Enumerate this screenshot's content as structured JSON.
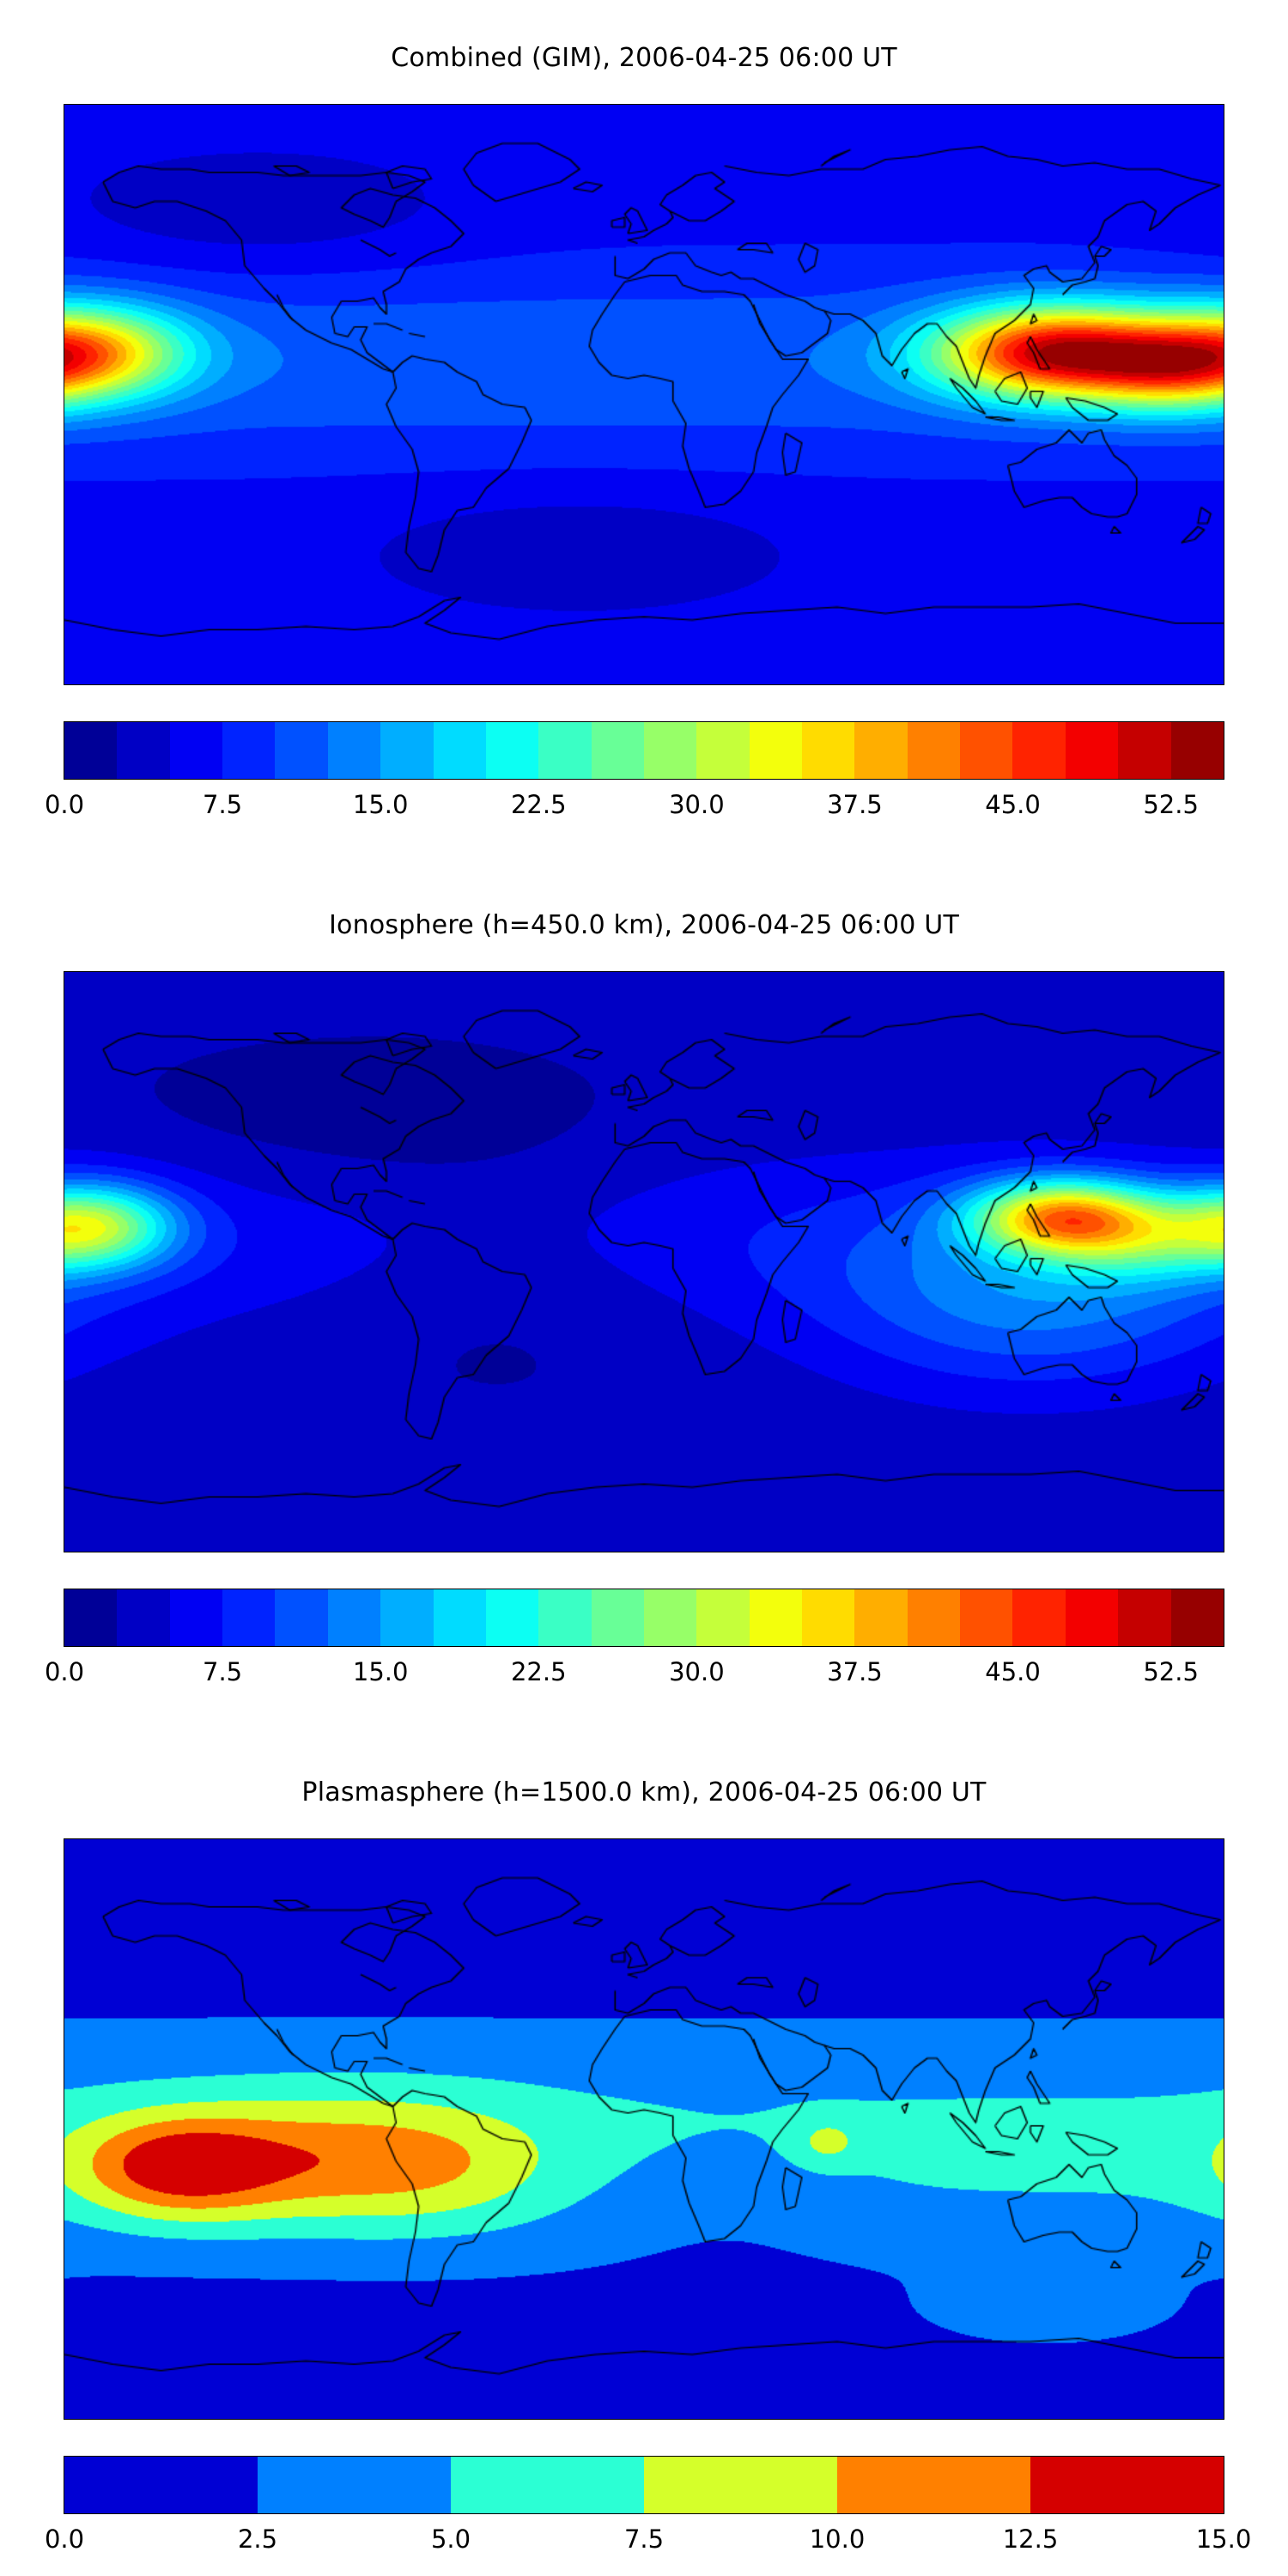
{
  "chart_data": [
    {
      "type": "heatmap",
      "subtype": "filled-contour-world-map",
      "title": "Combined (GIM), 2006-04-25 06:00 UT",
      "extent": {
        "lon_min": -180,
        "lon_max": 180,
        "lat_min": -90,
        "lat_max": 90
      },
      "coastlines": true,
      "colorbar": {
        "colormap": "jet",
        "orientation": "horizontal",
        "vmin": 0,
        "vmax": 55,
        "n_levels": 22,
        "ticks": [
          {
            "label": "0.0",
            "value": 0
          },
          {
            "label": "7.5",
            "value": 7.5
          },
          {
            "label": "15.0",
            "value": 15
          },
          {
            "label": "22.5",
            "value": 22.5
          },
          {
            "label": "30.0",
            "value": 30
          },
          {
            "label": "37.5",
            "value": 37.5
          },
          {
            "label": "45.0",
            "value": 45
          },
          {
            "label": "52.5",
            "value": 52.5
          }
        ]
      },
      "field": {
        "description": "Global TEC map: equatorial enhancement band with strong maximum (~50+) over Southeast Asia / western Pacific extending red-orange to the eastern map edge, secondary yellow-orange maximum (~40) at the western map edge near the date line, darker low-value patches over the northeast Pacific and south Atlantic",
        "base": 6,
        "band": {
          "lat0": 10,
          "sigma": 22,
          "amp": 6
        },
        "blobs": [
          {
            "lon": 128,
            "lat": 13,
            "amp": 40,
            "slon": 26,
            "slat": 10
          },
          {
            "lon": 162,
            "lat": 7,
            "amp": 14,
            "slon": 18,
            "slat": 9
          },
          {
            "lon": -174,
            "lat": 13,
            "amp": 28,
            "slon": 22,
            "slat": 10
          },
          {
            "lon": -120,
            "lat": 55,
            "amp": -3,
            "slon": 45,
            "slat": 14
          },
          {
            "lon": -20,
            "lat": -48,
            "amp": -3,
            "slon": 45,
            "slat": 13
          }
        ]
      }
    },
    {
      "type": "heatmap",
      "subtype": "filled-contour-world-map",
      "title": "Ionosphere  (h=450.0 km), 2006-04-25 06:00 UT",
      "extent": {
        "lon_min": -180,
        "lon_max": 180,
        "lat_min": -90,
        "lat_max": 90
      },
      "coastlines": true,
      "colorbar": {
        "colormap": "jet",
        "orientation": "horizontal",
        "vmin": 0,
        "vmax": 55,
        "n_levels": 22,
        "ticks": [
          {
            "label": "0.0",
            "value": 0
          },
          {
            "label": "7.5",
            "value": 7.5
          },
          {
            "label": "15.0",
            "value": 15
          },
          {
            "label": "22.5",
            "value": 22.5
          },
          {
            "label": "30.0",
            "value": 30
          },
          {
            "label": "37.5",
            "value": 37.5
          },
          {
            "label": "45.0",
            "value": 45
          },
          {
            "label": "52.5",
            "value": 52.5
          }
        ]
      },
      "field": {
        "description": "Ionospheric TEC at 450 km: overall darker (lower) background, yellow-orange maximum (~38) over the Philippines / western Pacific, yellow-green maximum (~30) at the western map edge, broad dark navy minimum over North America and the Atlantic",
        "base": 3,
        "band": {
          "lat0": 8,
          "sigma": 20,
          "amp": 4
        },
        "blobs": [
          {
            "lon": 130,
            "lat": 14,
            "amp": 30,
            "slon": 20,
            "slat": 8
          },
          {
            "lon": 152,
            "lat": 6,
            "amp": 10,
            "slon": 20,
            "slat": 9
          },
          {
            "lon": -172,
            "lat": 11,
            "amp": 24,
            "slon": 18,
            "slat": 9
          },
          {
            "lon": 120,
            "lat": -12,
            "amp": 9,
            "slon": 45,
            "slat": 20
          },
          {
            "lon": -90,
            "lat": 40,
            "amp": -2,
            "slon": 55,
            "slat": 18
          },
          {
            "lon": -45,
            "lat": 0,
            "amp": -2.5,
            "slon": 40,
            "slat": 25
          }
        ]
      }
    },
    {
      "type": "heatmap",
      "subtype": "filled-contour-world-map",
      "title": "Plasmasphere (h=1500.0 km), 2006-04-25 06:00 UT",
      "extent": {
        "lon_min": -180,
        "lon_max": 180,
        "lat_min": -90,
        "lat_max": 90
      },
      "coastlines": true,
      "colorbar": {
        "colormap": "jet",
        "orientation": "horizontal",
        "vmin": 0,
        "vmax": 15,
        "n_levels": 6,
        "ticks": [
          {
            "label": "0.0",
            "value": 0
          },
          {
            "label": "2.5",
            "value": 2.5
          },
          {
            "label": "5.0",
            "value": 5
          },
          {
            "label": "7.5",
            "value": 7.5
          },
          {
            "label": "10.0",
            "value": 10
          },
          {
            "label": "12.5",
            "value": 12.5
          },
          {
            "label": "15.0",
            "value": 15
          }
        ]
      },
      "field": {
        "description": "Plasmaspheric TEC at 1500 km: wide cyan equatorial band across the whole map, red maximum (~14) in the eastern Pacific with orange halo and yellow-green extension over South America, small yellow-green spot in the Indian Ocean, light-blue oval south of Australia, blue background at high latitudes",
        "base": 1.2,
        "band": {
          "lat0": -5,
          "sigma": 25,
          "amp": 4.5
        },
        "blobs": [
          {
            "lon": -145,
            "lat": -12,
            "amp": 8.5,
            "slon": 22,
            "slat": 11
          },
          {
            "lon": -100,
            "lat": -10,
            "amp": 5,
            "slon": 30,
            "slat": 14
          },
          {
            "lon": -60,
            "lat": -12,
            "amp": 3,
            "slon": 25,
            "slat": 14
          },
          {
            "lon": 57,
            "lat": -4,
            "amp": 3.2,
            "slon": 7,
            "slat": 5
          },
          {
            "lon": 125,
            "lat": -57,
            "amp": 2.2,
            "slon": 28,
            "slat": 8
          },
          {
            "lon": 25,
            "lat": -20,
            "amp": -1.5,
            "slon": 30,
            "slat": 15
          }
        ]
      }
    }
  ]
}
